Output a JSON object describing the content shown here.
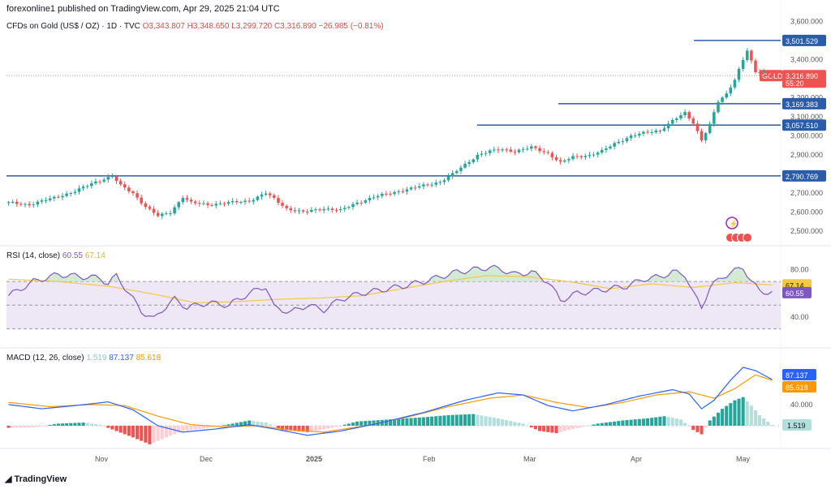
{
  "header": {
    "publisher_line": "forexonline1 published on TradingView.com, Apr 29, 2025 21:04 UTC",
    "symbol_line": "CFDs on Gold (US$ / OZ) · 1D · TVC",
    "open": "O3,343.807",
    "high": "H3,348.650",
    "low": "L3,299.720",
    "close": "C3,316.890",
    "change": "−26.985 (−0.81%)"
  },
  "price_scale": {
    "ticks": [
      "3,600.000",
      "3,400.000",
      "3,200.000",
      "3,100.000",
      "3,000.000",
      "2,900.000",
      "2,800.000",
      "2,700.000",
      "2,600.000",
      "2,500.000"
    ]
  },
  "horizontal_lines": [
    {
      "label": "3,501.529"
    },
    {
      "label": "3,169.383"
    },
    {
      "label": "3,057.510"
    },
    {
      "label": "2,790.769"
    }
  ],
  "last_price": {
    "symbol": "GOLD",
    "value": "3,316.890",
    "countdown": "55:20"
  },
  "rsi": {
    "label": "RSI (14, close)",
    "value": "60.55",
    "ma_value": "67.14",
    "ticks": [
      "80.00",
      "40.00"
    ],
    "colors": {
      "rsi": "#7e57c2",
      "ma": "#f5c842",
      "band": "#ede7f6"
    }
  },
  "macd": {
    "label": "MACD (12, 26, close)",
    "hist_value": "1.519",
    "macd_value": "87.137",
    "signal_value": "85.618",
    "ticks": [
      "40.000"
    ],
    "colors": {
      "macd": "#2962ff",
      "signal": "#ff9800"
    }
  },
  "time_axis": [
    "Nov",
    "Dec",
    "2025",
    "Feb",
    "Mar",
    "Apr",
    "May"
  ],
  "footer": {
    "brand": "TradingView"
  },
  "colors": {
    "up": "#26a69a",
    "down": "#ef5350",
    "line": "#2a5caa",
    "last": "#ef5350"
  },
  "chart_data": {
    "type": "candlestick",
    "title": "CFDs on Gold (US$ / OZ) · 1D · TVC",
    "y_range": [
      2450,
      3620
    ],
    "key_levels": [
      3501.529,
      3169.383,
      3057.51,
      2790.769
    ],
    "close_path": [
      [
        0,
        2650
      ],
      [
        5,
        2640
      ],
      [
        10,
        2670
      ],
      [
        16,
        2710
      ],
      [
        21,
        2760
      ],
      [
        25,
        2790
      ],
      [
        27,
        2740
      ],
      [
        30,
        2700
      ],
      [
        33,
        2630
      ],
      [
        36,
        2580
      ],
      [
        39,
        2600
      ],
      [
        42,
        2680
      ],
      [
        44,
        2650
      ],
      [
        48,
        2640
      ],
      [
        53,
        2650
      ],
      [
        58,
        2660
      ],
      [
        62,
        2700
      ],
      [
        64,
        2670
      ],
      [
        67,
        2620
      ],
      [
        71,
        2600
      ],
      [
        76,
        2620
      ],
      [
        80,
        2610
      ],
      [
        84,
        2650
      ],
      [
        88,
        2680
      ],
      [
        92,
        2700
      ],
      [
        96,
        2720
      ],
      [
        100,
        2740
      ],
      [
        104,
        2760
      ],
      [
        107,
        2800
      ],
      [
        110,
        2850
      ],
      [
        113,
        2900
      ],
      [
        116,
        2920
      ],
      [
        119,
        2930
      ],
      [
        122,
        2920
      ],
      [
        126,
        2940
      ],
      [
        130,
        2910
      ],
      [
        133,
        2860
      ],
      [
        136,
        2890
      ],
      [
        140,
        2900
      ],
      [
        143,
        2920
      ],
      [
        146,
        2960
      ],
      [
        150,
        3000
      ],
      [
        154,
        3020
      ],
      [
        157,
        3030
      ],
      [
        160,
        3080
      ],
      [
        163,
        3120
      ],
      [
        165,
        3070
      ],
      [
        167,
        2980
      ],
      [
        169,
        3060
      ],
      [
        171,
        3180
      ],
      [
        173,
        3220
      ],
      [
        175,
        3300
      ],
      [
        177,
        3400
      ],
      [
        178,
        3450
      ],
      [
        180,
        3330
      ],
      [
        182,
        3340
      ],
      [
        184,
        3320
      ]
    ],
    "rsi_path": [
      [
        0,
        58
      ],
      [
        6,
        70
      ],
      [
        12,
        76
      ],
      [
        18,
        74
      ],
      [
        22,
        73
      ],
      [
        24,
        68
      ],
      [
        26,
        75
      ],
      [
        29,
        60
      ],
      [
        32,
        45
      ],
      [
        35,
        38
      ],
      [
        37,
        46
      ],
      [
        40,
        55
      ],
      [
        43,
        48
      ],
      [
        48,
        52
      ],
      [
        53,
        50
      ],
      [
        58,
        60
      ],
      [
        62,
        66
      ],
      [
        64,
        48
      ],
      [
        68,
        44
      ],
      [
        72,
        50
      ],
      [
        76,
        46
      ],
      [
        80,
        55
      ],
      [
        85,
        60
      ],
      [
        90,
        63
      ],
      [
        95,
        66
      ],
      [
        100,
        70
      ],
      [
        104,
        74
      ],
      [
        108,
        78
      ],
      [
        112,
        80
      ],
      [
        116,
        82
      ],
      [
        119,
        80
      ],
      [
        122,
        76
      ],
      [
        126,
        78
      ],
      [
        130,
        70
      ],
      [
        133,
        54
      ],
      [
        137,
        60
      ],
      [
        141,
        62
      ],
      [
        145,
        64
      ],
      [
        149,
        66
      ],
      [
        153,
        72
      ],
      [
        157,
        74
      ],
      [
        160,
        78
      ],
      [
        163,
        76
      ],
      [
        165,
        60
      ],
      [
        167,
        48
      ],
      [
        169,
        65
      ],
      [
        172,
        74
      ],
      [
        175,
        79
      ],
      [
        177,
        82
      ],
      [
        179,
        70
      ],
      [
        181,
        62
      ],
      [
        184,
        60.55
      ]
    ],
    "rsi_ma_path": [
      [
        0,
        72
      ],
      [
        12,
        70
      ],
      [
        24,
        66
      ],
      [
        34,
        60
      ],
      [
        45,
        52
      ],
      [
        55,
        53
      ],
      [
        65,
        55
      ],
      [
        75,
        56
      ],
      [
        85,
        58
      ],
      [
        95,
        64
      ],
      [
        105,
        70
      ],
      [
        115,
        75
      ],
      [
        125,
        74
      ],
      [
        135,
        70
      ],
      [
        145,
        64
      ],
      [
        155,
        68
      ],
      [
        165,
        65
      ],
      [
        175,
        69
      ],
      [
        184,
        67.14
      ]
    ],
    "macd_hist": [
      [
        0,
        -4
      ],
      [
        6,
        -3
      ],
      [
        12,
        4
      ],
      [
        18,
        6
      ],
      [
        22,
        2
      ],
      [
        26,
        -10
      ],
      [
        30,
        -22
      ],
      [
        34,
        -35
      ],
      [
        38,
        -22
      ],
      [
        42,
        -10
      ],
      [
        48,
        -4
      ],
      [
        54,
        4
      ],
      [
        58,
        10
      ],
      [
        62,
        6
      ],
      [
        66,
        -8
      ],
      [
        72,
        -12
      ],
      [
        78,
        -4
      ],
      [
        84,
        8
      ],
      [
        92,
        12
      ],
      [
        100,
        16
      ],
      [
        106,
        20
      ],
      [
        112,
        22
      ],
      [
        118,
        14
      ],
      [
        124,
        4
      ],
      [
        128,
        -10
      ],
      [
        132,
        -14
      ],
      [
        136,
        -6
      ],
      [
        142,
        4
      ],
      [
        148,
        10
      ],
      [
        154,
        14
      ],
      [
        158,
        18
      ],
      [
        162,
        12
      ],
      [
        165,
        -8
      ],
      [
        167,
        -16
      ],
      [
        169,
        10
      ],
      [
        172,
        32
      ],
      [
        175,
        48
      ],
      [
        177,
        54
      ],
      [
        179,
        38
      ],
      [
        181,
        20
      ],
      [
        184,
        1.519
      ]
    ],
    "macd_line": [
      [
        0,
        40
      ],
      [
        8,
        32
      ],
      [
        16,
        38
      ],
      [
        24,
        45
      ],
      [
        30,
        30
      ],
      [
        36,
        0
      ],
      [
        42,
        -12
      ],
      [
        50,
        -6
      ],
      [
        58,
        2
      ],
      [
        64,
        -6
      ],
      [
        72,
        -18
      ],
      [
        80,
        -10
      ],
      [
        90,
        6
      ],
      [
        100,
        25
      ],
      [
        110,
        48
      ],
      [
        118,
        62
      ],
      [
        124,
        58
      ],
      [
        130,
        38
      ],
      [
        136,
        28
      ],
      [
        144,
        40
      ],
      [
        152,
        56
      ],
      [
        160,
        68
      ],
      [
        164,
        60
      ],
      [
        167,
        32
      ],
      [
        170,
        48
      ],
      [
        174,
        86
      ],
      [
        177,
        110
      ],
      [
        180,
        104
      ],
      [
        184,
        87.137
      ]
    ],
    "signal_line": [
      [
        0,
        44
      ],
      [
        10,
        36
      ],
      [
        20,
        40
      ],
      [
        28,
        38
      ],
      [
        36,
        18
      ],
      [
        44,
        2
      ],
      [
        52,
        -2
      ],
      [
        60,
        0
      ],
      [
        68,
        -8
      ],
      [
        76,
        -12
      ],
      [
        86,
        0
      ],
      [
        96,
        16
      ],
      [
        106,
        36
      ],
      [
        116,
        52
      ],
      [
        124,
        58
      ],
      [
        132,
        44
      ],
      [
        140,
        34
      ],
      [
        148,
        44
      ],
      [
        156,
        58
      ],
      [
        164,
        64
      ],
      [
        170,
        52
      ],
      [
        175,
        70
      ],
      [
        180,
        96
      ],
      [
        184,
        85.618
      ]
    ]
  }
}
